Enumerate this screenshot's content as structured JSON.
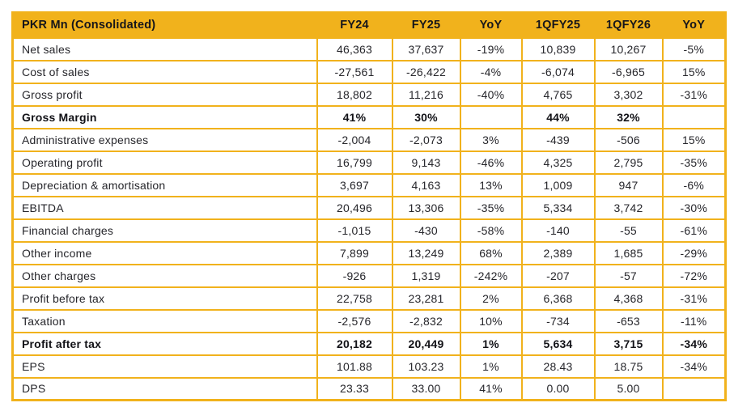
{
  "colors": {
    "accent_amber": "#F1B21C",
    "cell_bg": "#FFFFFF",
    "text_dark": "#26262B",
    "text_bold": "#121217"
  },
  "chart_data": {
    "type": "table",
    "title": "PKR Mn (Consolidated)",
    "columns": [
      "FY24",
      "FY25",
      "YoY",
      "1QFY25",
      "1QFY26",
      "YoY"
    ],
    "rows": [
      {
        "label": "Net sales",
        "bold": false,
        "values": [
          "46,363",
          "37,637",
          "-19%",
          "10,839",
          "10,267",
          "-5%"
        ]
      },
      {
        "label": "Cost of sales",
        "bold": false,
        "values": [
          "-27,561",
          "-26,422",
          "-4%",
          "-6,074",
          "-6,965",
          "15%"
        ]
      },
      {
        "label": "Gross profit",
        "bold": false,
        "values": [
          "18,802",
          "11,216",
          "-40%",
          "4,765",
          "3,302",
          "-31%"
        ]
      },
      {
        "label": "Gross Margin",
        "bold": true,
        "values": [
          "41%",
          "30%",
          "",
          "44%",
          "32%",
          ""
        ]
      },
      {
        "label": "Administrative expenses",
        "bold": false,
        "values": [
          "-2,004",
          "-2,073",
          "3%",
          "-439",
          "-506",
          "15%"
        ]
      },
      {
        "label": "Operating profit",
        "bold": false,
        "values": [
          "16,799",
          "9,143",
          "-46%",
          "4,325",
          "2,795",
          "-35%"
        ]
      },
      {
        "label": "Depreciation & amortisation",
        "bold": false,
        "values": [
          "3,697",
          "4,163",
          "13%",
          "1,009",
          "947",
          "-6%"
        ]
      },
      {
        "label": "EBITDA",
        "bold": false,
        "values": [
          "20,496",
          "13,306",
          "-35%",
          "5,334",
          "3,742",
          "-30%"
        ]
      },
      {
        "label": "Financial charges",
        "bold": false,
        "values": [
          "-1,015",
          "-430",
          "-58%",
          "-140",
          "-55",
          "-61%"
        ]
      },
      {
        "label": "Other income",
        "bold": false,
        "values": [
          "7,899",
          "13,249",
          "68%",
          "2,389",
          "1,685",
          "-29%"
        ]
      },
      {
        "label": "Other charges",
        "bold": false,
        "values": [
          "-926",
          "1,319",
          "-242%",
          "-207",
          "-57",
          "-72%"
        ]
      },
      {
        "label": "Profit before tax",
        "bold": false,
        "values": [
          "22,758",
          "23,281",
          "2%",
          "6,368",
          "4,368",
          "-31%"
        ]
      },
      {
        "label": "Taxation",
        "bold": false,
        "values": [
          "-2,576",
          "-2,832",
          "10%",
          "-734",
          "-653",
          "-11%"
        ]
      },
      {
        "label": "Profit after tax",
        "bold": true,
        "values": [
          "20,182",
          "20,449",
          "1%",
          "5,634",
          "3,715",
          "-34%"
        ]
      },
      {
        "label": "EPS",
        "bold": false,
        "values": [
          "101.88",
          "103.23",
          "1%",
          "28.43",
          "18.75",
          "-34%"
        ]
      },
      {
        "label": "DPS",
        "bold": false,
        "values": [
          "23.33",
          "33.00",
          "41%",
          "0.00",
          "5.00",
          ""
        ]
      }
    ]
  }
}
